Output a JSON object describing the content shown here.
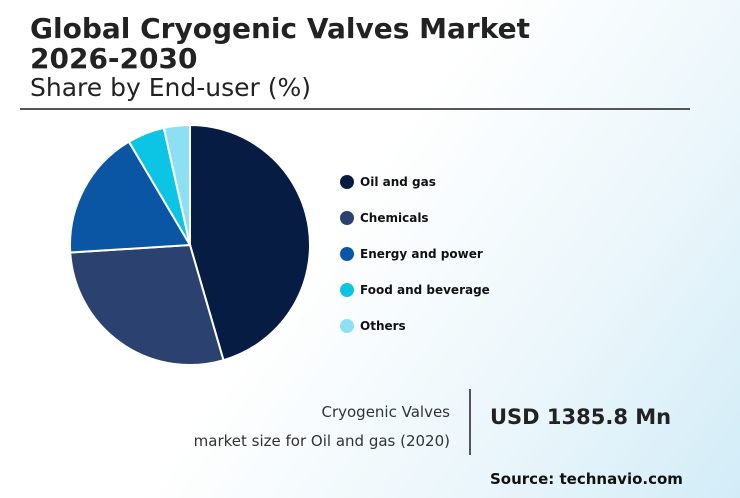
{
  "header": {
    "title_line1": "Global Cryogenic Valves Market",
    "title_line2": "2026-2030",
    "subtitle": "Share by End-user (%)"
  },
  "chart_data": {
    "type": "pie",
    "title": "Global Cryogenic Valves Market 2026-2030",
    "subtitle": "Share by End-user (%)",
    "categories": [
      "Oil and gas",
      "Chemicals",
      "Energy and power",
      "Food and beverage",
      "Others"
    ],
    "values": [
      45.5,
      28.5,
      17.5,
      5.0,
      3.5
    ],
    "colors": [
      "#071c43",
      "#2b4170",
      "#0b56a4",
      "#0cc4e4",
      "#8ce0f2"
    ],
    "legend_position": "right"
  },
  "info": {
    "label_line1": "Cryogenic Valves",
    "label_line2": "market size for Oil and gas (2020)",
    "value": "USD 1385.8 Mn"
  },
  "source": "Source: technavio.com"
}
